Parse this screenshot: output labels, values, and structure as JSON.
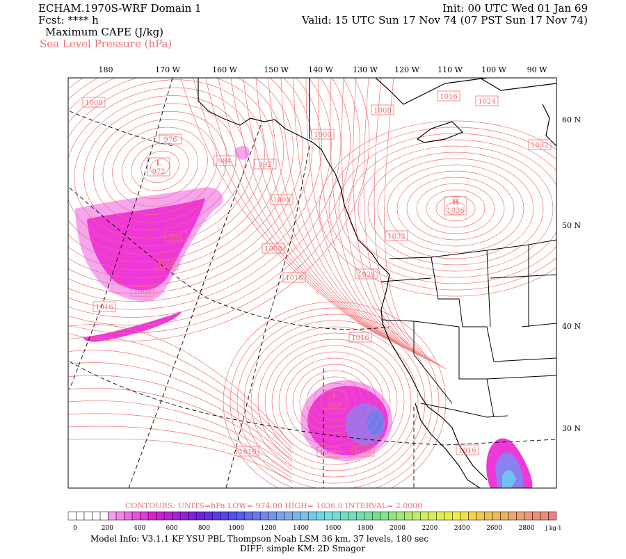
{
  "header": {
    "left": [
      "ECHAM.1970S-WRF Domain 1",
      "Fcst: **** h",
      "Maximum CAPE (J/kg)"
    ],
    "overlay": "Sea Level Pressure (hPa)",
    "right": [
      "Init: 00 UTC Wed 01 Jan 69",
      "Valid: 15 UTC Sun 17 Nov 74 (07 PST Sun 17 Nov 74)"
    ]
  },
  "map": {
    "lon_labels": [
      "180",
      "170 W",
      "160 W",
      "150 W",
      "140 W",
      "130 W",
      "120 W",
      "110 W",
      "100 W",
      "90 W"
    ],
    "lat_labels": [
      "60 N",
      "50 N",
      "40 N",
      "30 N"
    ],
    "contour_labels": [
      {
        "value": 1008
      },
      {
        "value": 976
      },
      {
        "mark": "L",
        "value": 972
      },
      {
        "value": 984
      },
      {
        "value": 992
      },
      {
        "value": 1000
      },
      {
        "value": 1008
      },
      {
        "value": 1016
      },
      {
        "value": 1024
      },
      {
        "value": 1032
      },
      {
        "value": 1000
      },
      {
        "mark": "H",
        "value": 1036
      },
      {
        "value": 1032
      },
      {
        "value": 992
      },
      {
        "value": 1000
      },
      {
        "value": 1008
      },
      {
        "value": 1016
      },
      {
        "value": 1024
      },
      {
        "value": 1008
      },
      {
        "value": 1016
      },
      {
        "value": 1016
      },
      {
        "mark": "L",
        "value": 999
      },
      {
        "value": 1016
      },
      {
        "value": 1008
      },
      {
        "value": 1008
      },
      {
        "value": 1016
      }
    ]
  },
  "contour_info": "CONTOURS:  UNITS=hPa  LOW=  974.00  HIGH=  1036.0  INTERVAL=  2.0000",
  "colorbar": {
    "labels": [
      0,
      200,
      400,
      600,
      800,
      1000,
      1200,
      1400,
      1600,
      1800,
      2000,
      2200,
      2400,
      2600,
      2800
    ],
    "unit": "J kg-1"
  },
  "footer": [
    "Model Info: V3.1.1    KF    YSU PBL   Thompson    Noah LSM   36 km,    37 levels,  180 sec",
    "DIFF: simple KM: 2D Smagor"
  ]
}
